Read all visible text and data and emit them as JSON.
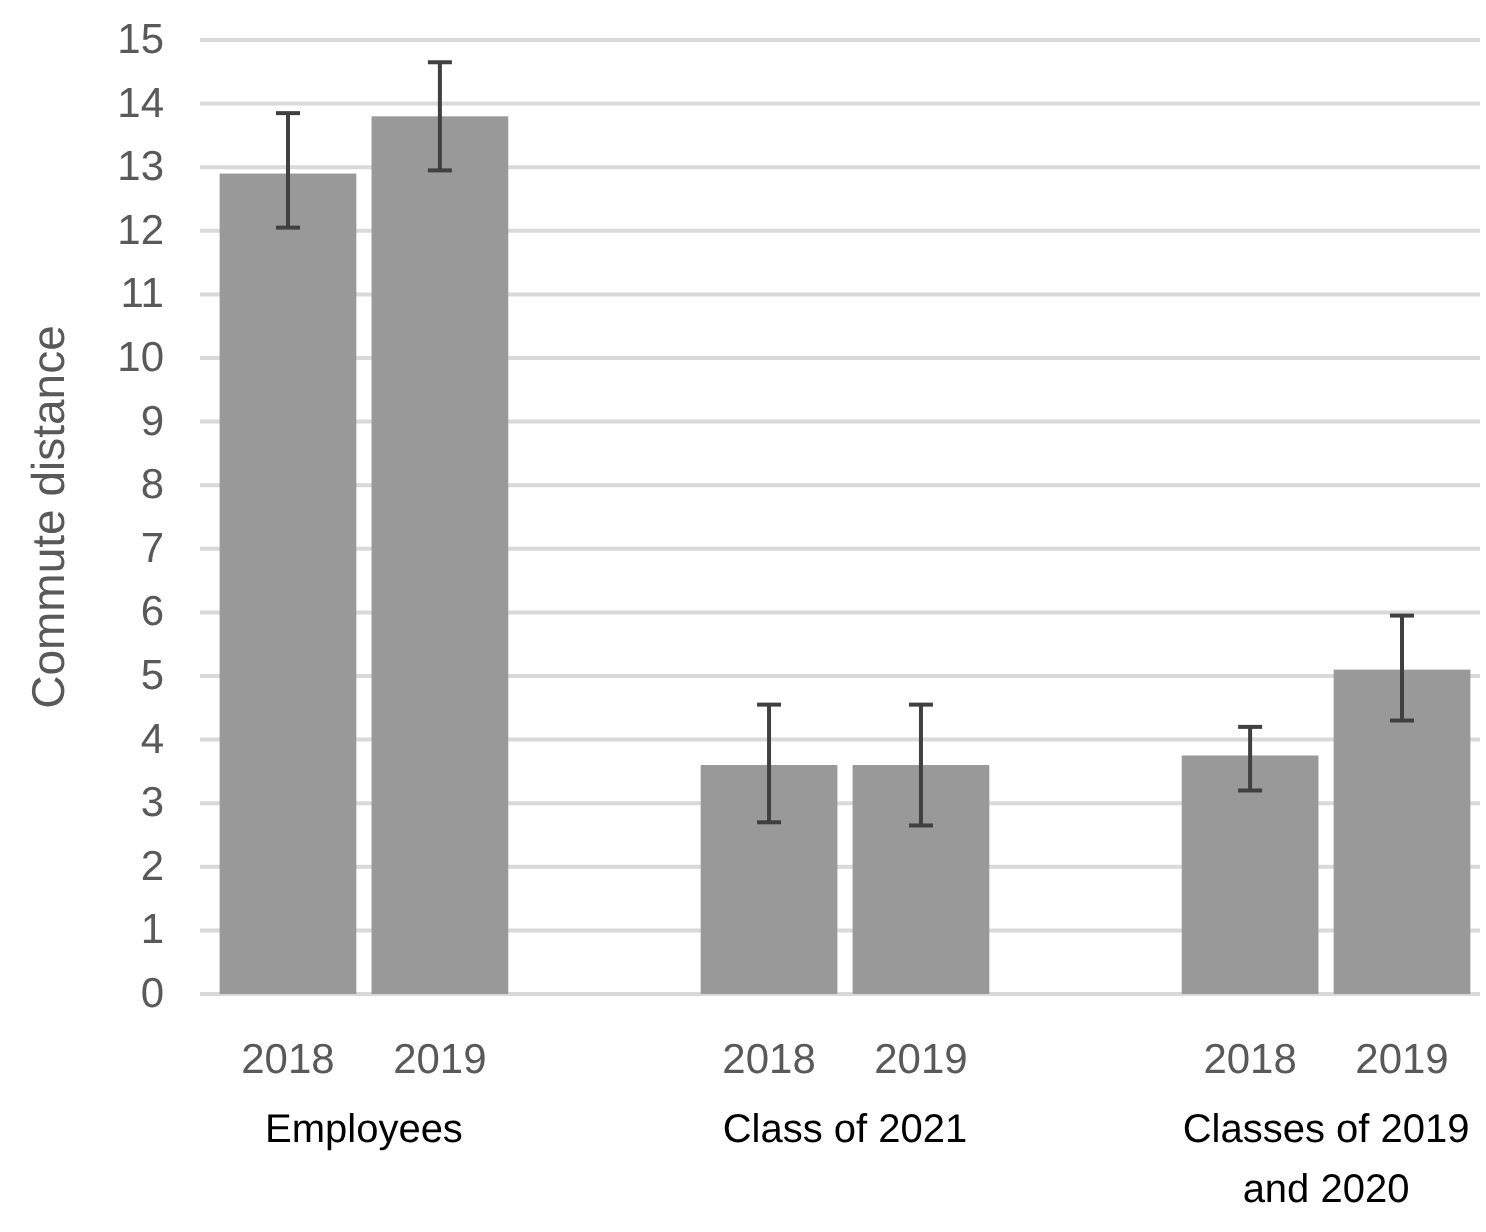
{
  "chart_data": {
    "type": "bar",
    "ylabel": "Commute distance",
    "categories": [
      "Employees",
      "Class of 2021",
      "Classes of 2019 and 2020"
    ],
    "series": [
      {
        "name": "2018",
        "color": "#999999",
        "values": [
          12.9,
          3.6,
          3.75
        ],
        "errors": [
          [
            12.05,
            13.85
          ],
          [
            2.7,
            4.55
          ],
          [
            3.2,
            4.2
          ]
        ]
      },
      {
        "name": "2019",
        "color": "#999999",
        "values": [
          13.8,
          3.6,
          5.1
        ],
        "errors": [
          [
            12.95,
            14.65
          ],
          [
            2.65,
            4.55
          ],
          [
            4.3,
            5.95
          ]
        ]
      }
    ],
    "ylim": [
      0,
      15
    ],
    "yticks": [
      0,
      1,
      2,
      3,
      4,
      5,
      6,
      7,
      8,
      9,
      10,
      11,
      12,
      13,
      14,
      15
    ],
    "grid": "y"
  }
}
